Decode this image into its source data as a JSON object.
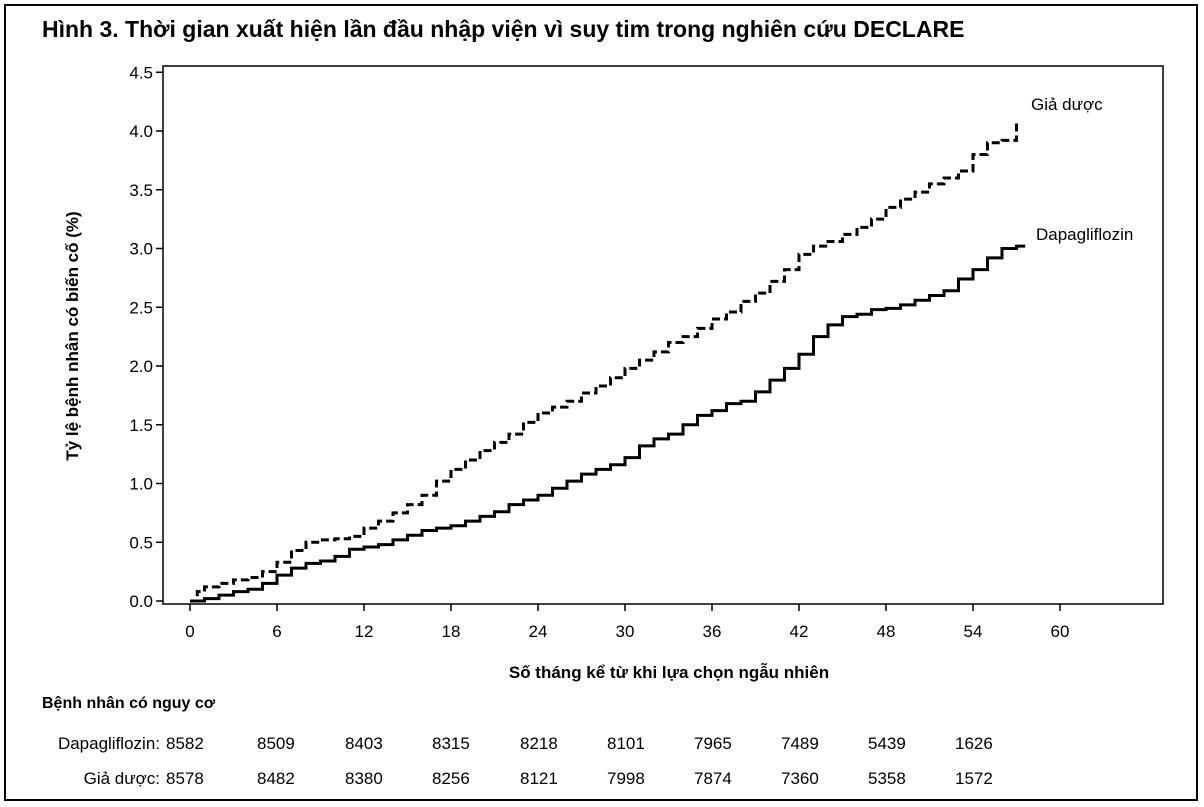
{
  "title": "Hình 3. Thời gian xuất hiện lần đầu nhập viện vì suy tim trong nghiên cứu DECLARE",
  "chart_data": {
    "type": "line",
    "xlabel": "Số tháng kể từ khi lựa chọn ngẫu nhiên",
    "ylabel": "Tỷ lệ bệnh nhân có biến cố (%)",
    "xlim": [
      0,
      60
    ],
    "ylim": [
      0,
      4.5
    ],
    "x_ticks": [
      "0",
      "6",
      "12",
      "18",
      "24",
      "30",
      "36",
      "42",
      "48",
      "54",
      "60"
    ],
    "y_ticks": [
      "0.0",
      "0.5",
      "1.0",
      "1.5",
      "2.0",
      "2.5",
      "3.0",
      "3.5",
      "4.0",
      "4.5"
    ],
    "grid": false,
    "series": [
      {
        "name": "Giả dược",
        "style": "dashed",
        "color": "#000000",
        "x": [
          0,
          0.5,
          1,
          2,
          3,
          4,
          5,
          6,
          7,
          8,
          9,
          10,
          11,
          12,
          13,
          14,
          15,
          16,
          17,
          18,
          19,
          20,
          21,
          22,
          23,
          24,
          25,
          26,
          27,
          28,
          29,
          30,
          31,
          32,
          33,
          34,
          35,
          36,
          37,
          38,
          39,
          40,
          41,
          42,
          43,
          44,
          45,
          46,
          47,
          48,
          49,
          50,
          51,
          52,
          53,
          54,
          55,
          56,
          57
        ],
        "y": [
          0.0,
          0.08,
          0.12,
          0.15,
          0.18,
          0.2,
          0.25,
          0.33,
          0.43,
          0.5,
          0.52,
          0.53,
          0.55,
          0.62,
          0.68,
          0.75,
          0.82,
          0.9,
          1.02,
          1.12,
          1.2,
          1.28,
          1.35,
          1.42,
          1.52,
          1.6,
          1.65,
          1.7,
          1.77,
          1.83,
          1.9,
          1.98,
          2.05,
          2.12,
          2.2,
          2.25,
          2.32,
          2.4,
          2.46,
          2.55,
          2.62,
          2.72,
          2.82,
          2.95,
          3.02,
          3.06,
          3.12,
          3.18,
          3.25,
          3.35,
          3.42,
          3.48,
          3.55,
          3.6,
          3.66,
          3.8,
          3.9,
          3.92,
          4.08
        ]
      },
      {
        "name": "Dapagliflozin",
        "style": "solid",
        "color": "#000000",
        "x": [
          0,
          1,
          2,
          3,
          4,
          5,
          6,
          7,
          8,
          9,
          10,
          11,
          12,
          13,
          14,
          15,
          16,
          17,
          18,
          19,
          20,
          21,
          22,
          23,
          24,
          25,
          26,
          27,
          28,
          29,
          30,
          31,
          32,
          33,
          34,
          35,
          36,
          37,
          38,
          39,
          40,
          41,
          42,
          43,
          44,
          45,
          46,
          47,
          48,
          49,
          50,
          51,
          52,
          53,
          54,
          55,
          56,
          57
        ],
        "y": [
          0.0,
          0.02,
          0.05,
          0.08,
          0.1,
          0.15,
          0.22,
          0.28,
          0.32,
          0.34,
          0.38,
          0.44,
          0.46,
          0.48,
          0.52,
          0.56,
          0.6,
          0.62,
          0.64,
          0.68,
          0.72,
          0.76,
          0.82,
          0.86,
          0.9,
          0.96,
          1.02,
          1.08,
          1.12,
          1.16,
          1.22,
          1.32,
          1.38,
          1.42,
          1.5,
          1.58,
          1.62,
          1.68,
          1.7,
          1.78,
          1.88,
          1.98,
          2.1,
          2.25,
          2.35,
          2.42,
          2.44,
          2.48,
          2.49,
          2.52,
          2.56,
          2.6,
          2.64,
          2.74,
          2.82,
          2.92,
          3.0,
          3.02
        ]
      }
    ],
    "annotations": [
      "Giả dược",
      "Dapagliflozin"
    ]
  },
  "risk_table": {
    "heading": "Bệnh nhân có nguy cơ",
    "rows": [
      {
        "label": "Dapagliflozin:",
        "values": [
          "8582",
          "8509",
          "8403",
          "8315",
          "8218",
          "8101",
          "7965",
          "7489",
          "5439",
          "1626"
        ]
      },
      {
        "label": "Giả dược:",
        "values": [
          "8578",
          "8482",
          "8380",
          "8256",
          "8121",
          "7998",
          "7874",
          "7360",
          "5358",
          "1572"
        ]
      }
    ]
  }
}
